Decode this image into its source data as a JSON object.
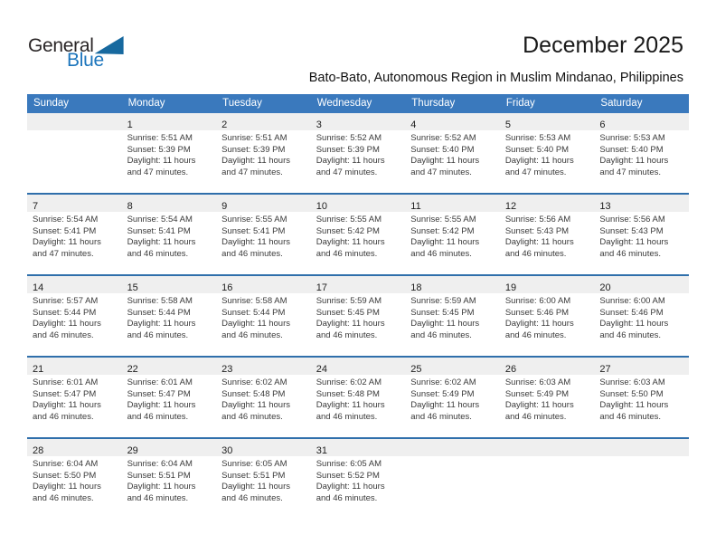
{
  "logo": {
    "word1": "General",
    "word2": "Blue"
  },
  "header": {
    "title": "December 2025",
    "subtitle": "Bato-Bato, Autonomous Region in Muslim Mindanao, Philippines"
  },
  "colors": {
    "header_bg": "#3a79bd",
    "week_divider": "#2f6fab",
    "day_band_bg": "#efefef",
    "logo_blue": "#1c75bc",
    "logo_triangle": "#17699f"
  },
  "weekdays": [
    "Sunday",
    "Monday",
    "Tuesday",
    "Wednesday",
    "Thursday",
    "Friday",
    "Saturday"
  ],
  "weeks": [
    [
      {
        "day": "",
        "sunrise": "",
        "sunset": "",
        "daylight": ""
      },
      {
        "day": "1",
        "sunrise": "Sunrise: 5:51 AM",
        "sunset": "Sunset: 5:39 PM",
        "daylight": "Daylight: 11 hours and 47 minutes."
      },
      {
        "day": "2",
        "sunrise": "Sunrise: 5:51 AM",
        "sunset": "Sunset: 5:39 PM",
        "daylight": "Daylight: 11 hours and 47 minutes."
      },
      {
        "day": "3",
        "sunrise": "Sunrise: 5:52 AM",
        "sunset": "Sunset: 5:39 PM",
        "daylight": "Daylight: 11 hours and 47 minutes."
      },
      {
        "day": "4",
        "sunrise": "Sunrise: 5:52 AM",
        "sunset": "Sunset: 5:40 PM",
        "daylight": "Daylight: 11 hours and 47 minutes."
      },
      {
        "day": "5",
        "sunrise": "Sunrise: 5:53 AM",
        "sunset": "Sunset: 5:40 PM",
        "daylight": "Daylight: 11 hours and 47 minutes."
      },
      {
        "day": "6",
        "sunrise": "Sunrise: 5:53 AM",
        "sunset": "Sunset: 5:40 PM",
        "daylight": "Daylight: 11 hours and 47 minutes."
      }
    ],
    [
      {
        "day": "7",
        "sunrise": "Sunrise: 5:54 AM",
        "sunset": "Sunset: 5:41 PM",
        "daylight": "Daylight: 11 hours and 47 minutes."
      },
      {
        "day": "8",
        "sunrise": "Sunrise: 5:54 AM",
        "sunset": "Sunset: 5:41 PM",
        "daylight": "Daylight: 11 hours and 46 minutes."
      },
      {
        "day": "9",
        "sunrise": "Sunrise: 5:55 AM",
        "sunset": "Sunset: 5:41 PM",
        "daylight": "Daylight: 11 hours and 46 minutes."
      },
      {
        "day": "10",
        "sunrise": "Sunrise: 5:55 AM",
        "sunset": "Sunset: 5:42 PM",
        "daylight": "Daylight: 11 hours and 46 minutes."
      },
      {
        "day": "11",
        "sunrise": "Sunrise: 5:55 AM",
        "sunset": "Sunset: 5:42 PM",
        "daylight": "Daylight: 11 hours and 46 minutes."
      },
      {
        "day": "12",
        "sunrise": "Sunrise: 5:56 AM",
        "sunset": "Sunset: 5:43 PM",
        "daylight": "Daylight: 11 hours and 46 minutes."
      },
      {
        "day": "13",
        "sunrise": "Sunrise: 5:56 AM",
        "sunset": "Sunset: 5:43 PM",
        "daylight": "Daylight: 11 hours and 46 minutes."
      }
    ],
    [
      {
        "day": "14",
        "sunrise": "Sunrise: 5:57 AM",
        "sunset": "Sunset: 5:44 PM",
        "daylight": "Daylight: 11 hours and 46 minutes."
      },
      {
        "day": "15",
        "sunrise": "Sunrise: 5:58 AM",
        "sunset": "Sunset: 5:44 PM",
        "daylight": "Daylight: 11 hours and 46 minutes."
      },
      {
        "day": "16",
        "sunrise": "Sunrise: 5:58 AM",
        "sunset": "Sunset: 5:44 PM",
        "daylight": "Daylight: 11 hours and 46 minutes."
      },
      {
        "day": "17",
        "sunrise": "Sunrise: 5:59 AM",
        "sunset": "Sunset: 5:45 PM",
        "daylight": "Daylight: 11 hours and 46 minutes."
      },
      {
        "day": "18",
        "sunrise": "Sunrise: 5:59 AM",
        "sunset": "Sunset: 5:45 PM",
        "daylight": "Daylight: 11 hours and 46 minutes."
      },
      {
        "day": "19",
        "sunrise": "Sunrise: 6:00 AM",
        "sunset": "Sunset: 5:46 PM",
        "daylight": "Daylight: 11 hours and 46 minutes."
      },
      {
        "day": "20",
        "sunrise": "Sunrise: 6:00 AM",
        "sunset": "Sunset: 5:46 PM",
        "daylight": "Daylight: 11 hours and 46 minutes."
      }
    ],
    [
      {
        "day": "21",
        "sunrise": "Sunrise: 6:01 AM",
        "sunset": "Sunset: 5:47 PM",
        "daylight": "Daylight: 11 hours and 46 minutes."
      },
      {
        "day": "22",
        "sunrise": "Sunrise: 6:01 AM",
        "sunset": "Sunset: 5:47 PM",
        "daylight": "Daylight: 11 hours and 46 minutes."
      },
      {
        "day": "23",
        "sunrise": "Sunrise: 6:02 AM",
        "sunset": "Sunset: 5:48 PM",
        "daylight": "Daylight: 11 hours and 46 minutes."
      },
      {
        "day": "24",
        "sunrise": "Sunrise: 6:02 AM",
        "sunset": "Sunset: 5:48 PM",
        "daylight": "Daylight: 11 hours and 46 minutes."
      },
      {
        "day": "25",
        "sunrise": "Sunrise: 6:02 AM",
        "sunset": "Sunset: 5:49 PM",
        "daylight": "Daylight: 11 hours and 46 minutes."
      },
      {
        "day": "26",
        "sunrise": "Sunrise: 6:03 AM",
        "sunset": "Sunset: 5:49 PM",
        "daylight": "Daylight: 11 hours and 46 minutes."
      },
      {
        "day": "27",
        "sunrise": "Sunrise: 6:03 AM",
        "sunset": "Sunset: 5:50 PM",
        "daylight": "Daylight: 11 hours and 46 minutes."
      }
    ],
    [
      {
        "day": "28",
        "sunrise": "Sunrise: 6:04 AM",
        "sunset": "Sunset: 5:50 PM",
        "daylight": "Daylight: 11 hours and 46 minutes."
      },
      {
        "day": "29",
        "sunrise": "Sunrise: 6:04 AM",
        "sunset": "Sunset: 5:51 PM",
        "daylight": "Daylight: 11 hours and 46 minutes."
      },
      {
        "day": "30",
        "sunrise": "Sunrise: 6:05 AM",
        "sunset": "Sunset: 5:51 PM",
        "daylight": "Daylight: 11 hours and 46 minutes."
      },
      {
        "day": "31",
        "sunrise": "Sunrise: 6:05 AM",
        "sunset": "Sunset: 5:52 PM",
        "daylight": "Daylight: 11 hours and 46 minutes."
      },
      {
        "day": "",
        "sunrise": "",
        "sunset": "",
        "daylight": ""
      },
      {
        "day": "",
        "sunrise": "",
        "sunset": "",
        "daylight": ""
      },
      {
        "day": "",
        "sunrise": "",
        "sunset": "",
        "daylight": ""
      }
    ]
  ]
}
